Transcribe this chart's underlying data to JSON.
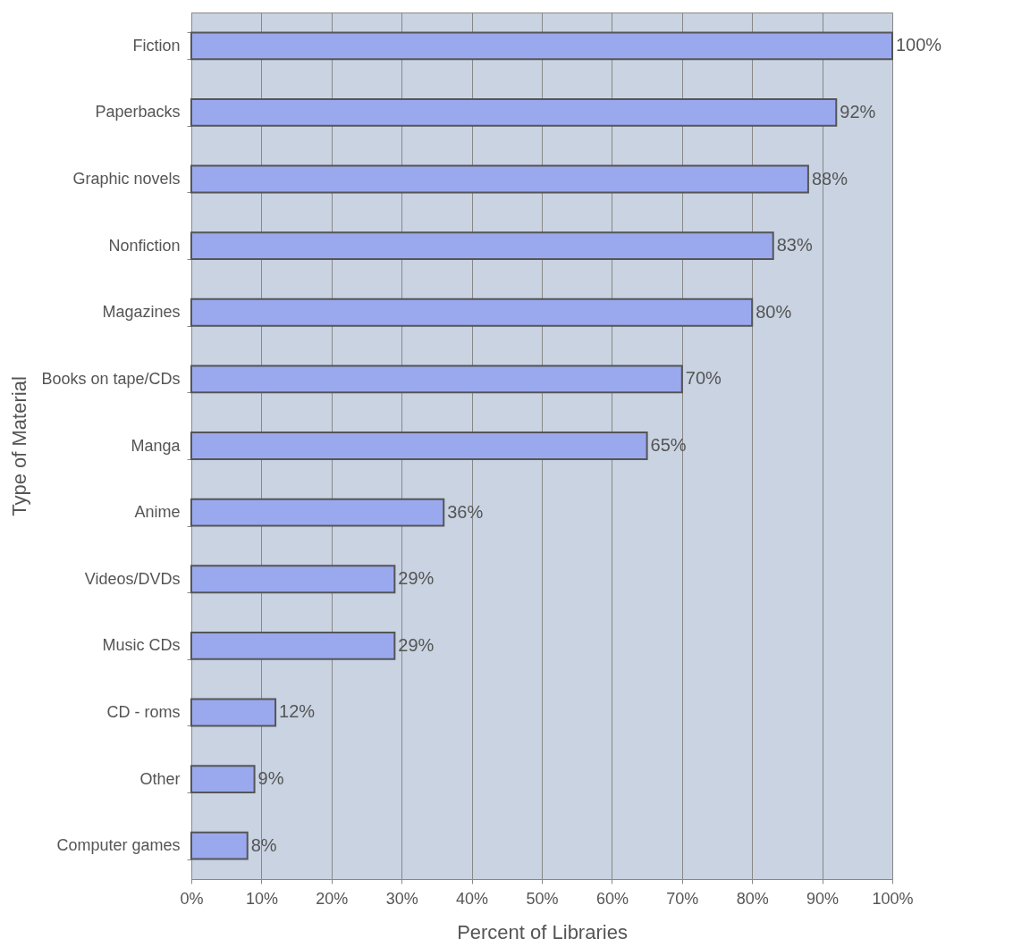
{
  "chart_data": {
    "type": "bar",
    "orientation": "horizontal",
    "xlabel": "Percent of Libraries",
    "ylabel": "Type of Material",
    "categories": [
      "Fiction",
      "Paperbacks",
      "Graphic novels",
      "Nonfiction",
      "Magazines",
      "Books on tape/CDs",
      "Manga",
      "Anime",
      "Videos/DVDs",
      "Music CDs",
      "CD - roms",
      "Other",
      "Computer games"
    ],
    "values": [
      100,
      92,
      88,
      83,
      80,
      70,
      65,
      36,
      29,
      29,
      12,
      9,
      8
    ],
    "value_labels": [
      "100%",
      "92%",
      "88%",
      "83%",
      "80%",
      "70%",
      "65%",
      "36%",
      "29%",
      "29%",
      "12%",
      "9%",
      "8%"
    ],
    "color": "#9aa9ee",
    "xlim": [
      0,
      100
    ],
    "xticks": [
      {
        "value": 0,
        "label": "0%"
      },
      {
        "value": 10,
        "label": "10%"
      },
      {
        "value": 20,
        "label": "20%"
      },
      {
        "value": 30,
        "label": "30%"
      },
      {
        "value": 40,
        "label": "40%"
      },
      {
        "value": 50,
        "label": "50%"
      },
      {
        "value": 60,
        "label": "60%"
      },
      {
        "value": 70,
        "label": "70%"
      },
      {
        "value": 80,
        "label": "80%"
      },
      {
        "value": 90,
        "label": "90%"
      },
      {
        "value": 100,
        "label": "100%"
      }
    ],
    "grid": "x"
  }
}
